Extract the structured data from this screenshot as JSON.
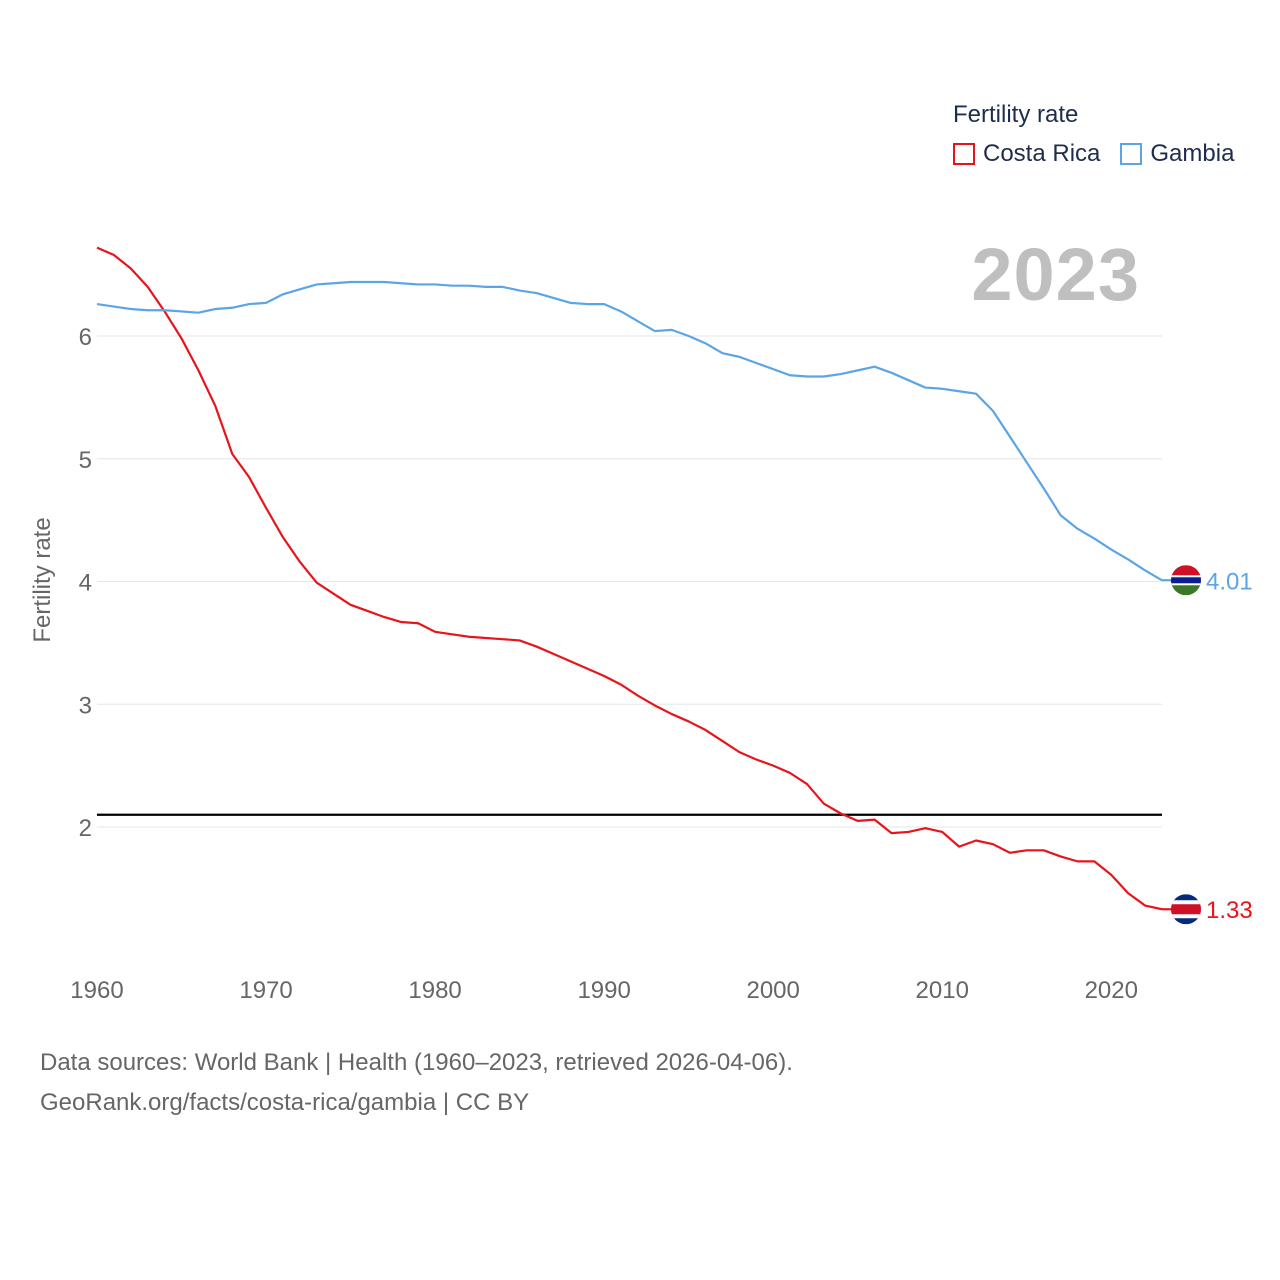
{
  "chart_data": {
    "type": "line",
    "title": "Fertility rate",
    "ylabel": "Fertility rate",
    "xlabel": "",
    "current_year": "2023",
    "xlim": [
      1960,
      2023
    ],
    "ylim": [
      1.0,
      7.0
    ],
    "x_ticks": [
      1960,
      1970,
      1980,
      1990,
      2000,
      2010,
      2020
    ],
    "y_ticks": [
      2,
      3,
      4,
      5,
      6
    ],
    "reference_line": 2.1,
    "series": [
      {
        "name": "Costa Rica",
        "color": "#e8141b",
        "end_label": "1.33",
        "flag": "costa-rica",
        "x": [
          1960,
          1961,
          1962,
          1963,
          1964,
          1965,
          1966,
          1967,
          1968,
          1969,
          1970,
          1971,
          1972,
          1973,
          1974,
          1975,
          1976,
          1977,
          1978,
          1979,
          1980,
          1981,
          1982,
          1983,
          1984,
          1985,
          1986,
          1987,
          1988,
          1989,
          1990,
          1991,
          1992,
          1993,
          1994,
          1995,
          1996,
          1997,
          1998,
          1999,
          2000,
          2001,
          2002,
          2003,
          2004,
          2005,
          2006,
          2007,
          2008,
          2009,
          2010,
          2011,
          2012,
          2013,
          2014,
          2015,
          2016,
          2017,
          2018,
          2019,
          2020,
          2021,
          2022,
          2023
        ],
        "values": [
          6.72,
          6.66,
          6.55,
          6.4,
          6.2,
          5.98,
          5.72,
          5.43,
          5.04,
          4.85,
          4.6,
          4.36,
          4.16,
          3.99,
          3.9,
          3.81,
          3.76,
          3.71,
          3.67,
          3.66,
          3.59,
          3.57,
          3.55,
          3.54,
          3.53,
          3.52,
          3.47,
          3.41,
          3.35,
          3.29,
          3.23,
          3.16,
          3.07,
          2.99,
          2.92,
          2.86,
          2.79,
          2.7,
          2.61,
          2.55,
          2.5,
          2.44,
          2.35,
          2.19,
          2.11,
          2.05,
          2.06,
          1.95,
          1.96,
          1.99,
          1.96,
          1.84,
          1.89,
          1.86,
          1.79,
          1.81,
          1.81,
          1.76,
          1.72,
          1.72,
          1.61,
          1.46,
          1.36,
          1.33
        ]
      },
      {
        "name": "Gambia",
        "color": "#5ba5e6",
        "end_label": "4.01",
        "flag": "gambia",
        "x": [
          1960,
          1961,
          1962,
          1963,
          1964,
          1965,
          1966,
          1967,
          1968,
          1969,
          1970,
          1971,
          1972,
          1973,
          1974,
          1975,
          1976,
          1977,
          1978,
          1979,
          1980,
          1981,
          1982,
          1983,
          1984,
          1985,
          1986,
          1987,
          1988,
          1989,
          1990,
          1991,
          1992,
          1993,
          1994,
          1995,
          1996,
          1997,
          1998,
          1999,
          2000,
          2001,
          2002,
          2003,
          2004,
          2005,
          2006,
          2007,
          2008,
          2009,
          2010,
          2011,
          2012,
          2013,
          2014,
          2015,
          2016,
          2017,
          2018,
          2019,
          2020,
          2021,
          2022,
          2023
        ],
        "values": [
          6.26,
          6.24,
          6.22,
          6.21,
          6.21,
          6.2,
          6.19,
          6.22,
          6.23,
          6.26,
          6.27,
          6.34,
          6.38,
          6.42,
          6.43,
          6.44,
          6.44,
          6.44,
          6.43,
          6.42,
          6.42,
          6.41,
          6.41,
          6.4,
          6.4,
          6.37,
          6.35,
          6.31,
          6.27,
          6.26,
          6.26,
          6.2,
          6.12,
          6.04,
          6.05,
          6.0,
          5.94,
          5.86,
          5.83,
          5.78,
          5.73,
          5.68,
          5.67,
          5.67,
          5.69,
          5.72,
          5.75,
          5.7,
          5.64,
          5.58,
          5.57,
          5.55,
          5.53,
          5.39,
          5.18,
          4.97,
          4.76,
          4.54,
          4.43,
          4.35,
          4.26,
          4.18,
          4.09,
          4.01
        ]
      }
    ]
  },
  "legend": {
    "title": "Fertility rate",
    "items": [
      {
        "label": "Costa Rica",
        "color": "#e8141b"
      },
      {
        "label": "Gambia",
        "color": "#5ba5e6"
      }
    ]
  },
  "source": {
    "line1": "Data sources: World Bank | Health (1960–2023, retrieved 2026-04-06).",
    "line2": "GeoRank.org/facts/costa-rica/gambia | CC BY"
  }
}
